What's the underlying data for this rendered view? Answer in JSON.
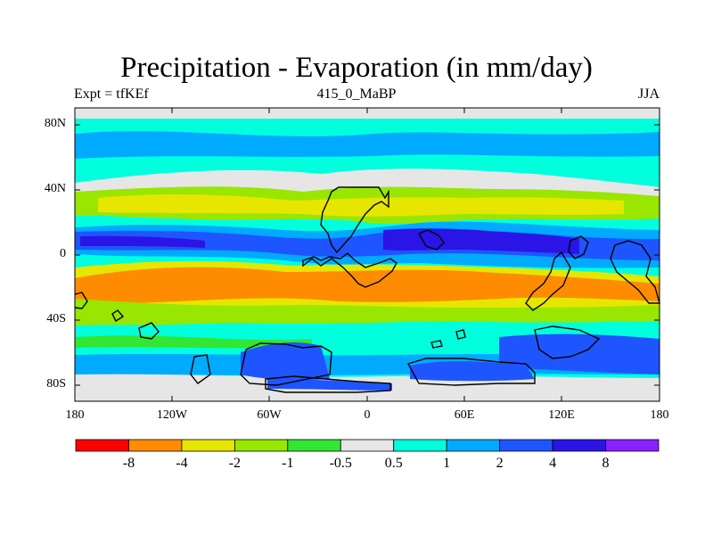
{
  "title": "Precipitation - Evaporation (in mm/day)",
  "subtitle_left": "Expt = tfKEf",
  "subtitle_center": "415_0_MaBP",
  "subtitle_right": "JJA",
  "lat_ticks": [
    "80N",
    "40N",
    "0",
    "40S",
    "80S"
  ],
  "lon_ticks": [
    "180",
    "120W",
    "60W",
    "0",
    "60E",
    "120E",
    "180"
  ],
  "colorbar": {
    "colors": [
      "#ff0000",
      "#ff8c00",
      "#e6e600",
      "#99e600",
      "#33e633",
      "#e6e6e6",
      "#00ffdd",
      "#00aaff",
      "#1f55ff",
      "#2b14e6",
      "#8822ff"
    ],
    "labels": [
      "-8",
      "-4",
      "-2",
      "-1",
      "-0.5",
      "0.5",
      "1",
      "2",
      "4",
      "8"
    ]
  },
  "colors": {
    "continent_outline": "#000000",
    "frame": "#000000"
  }
}
